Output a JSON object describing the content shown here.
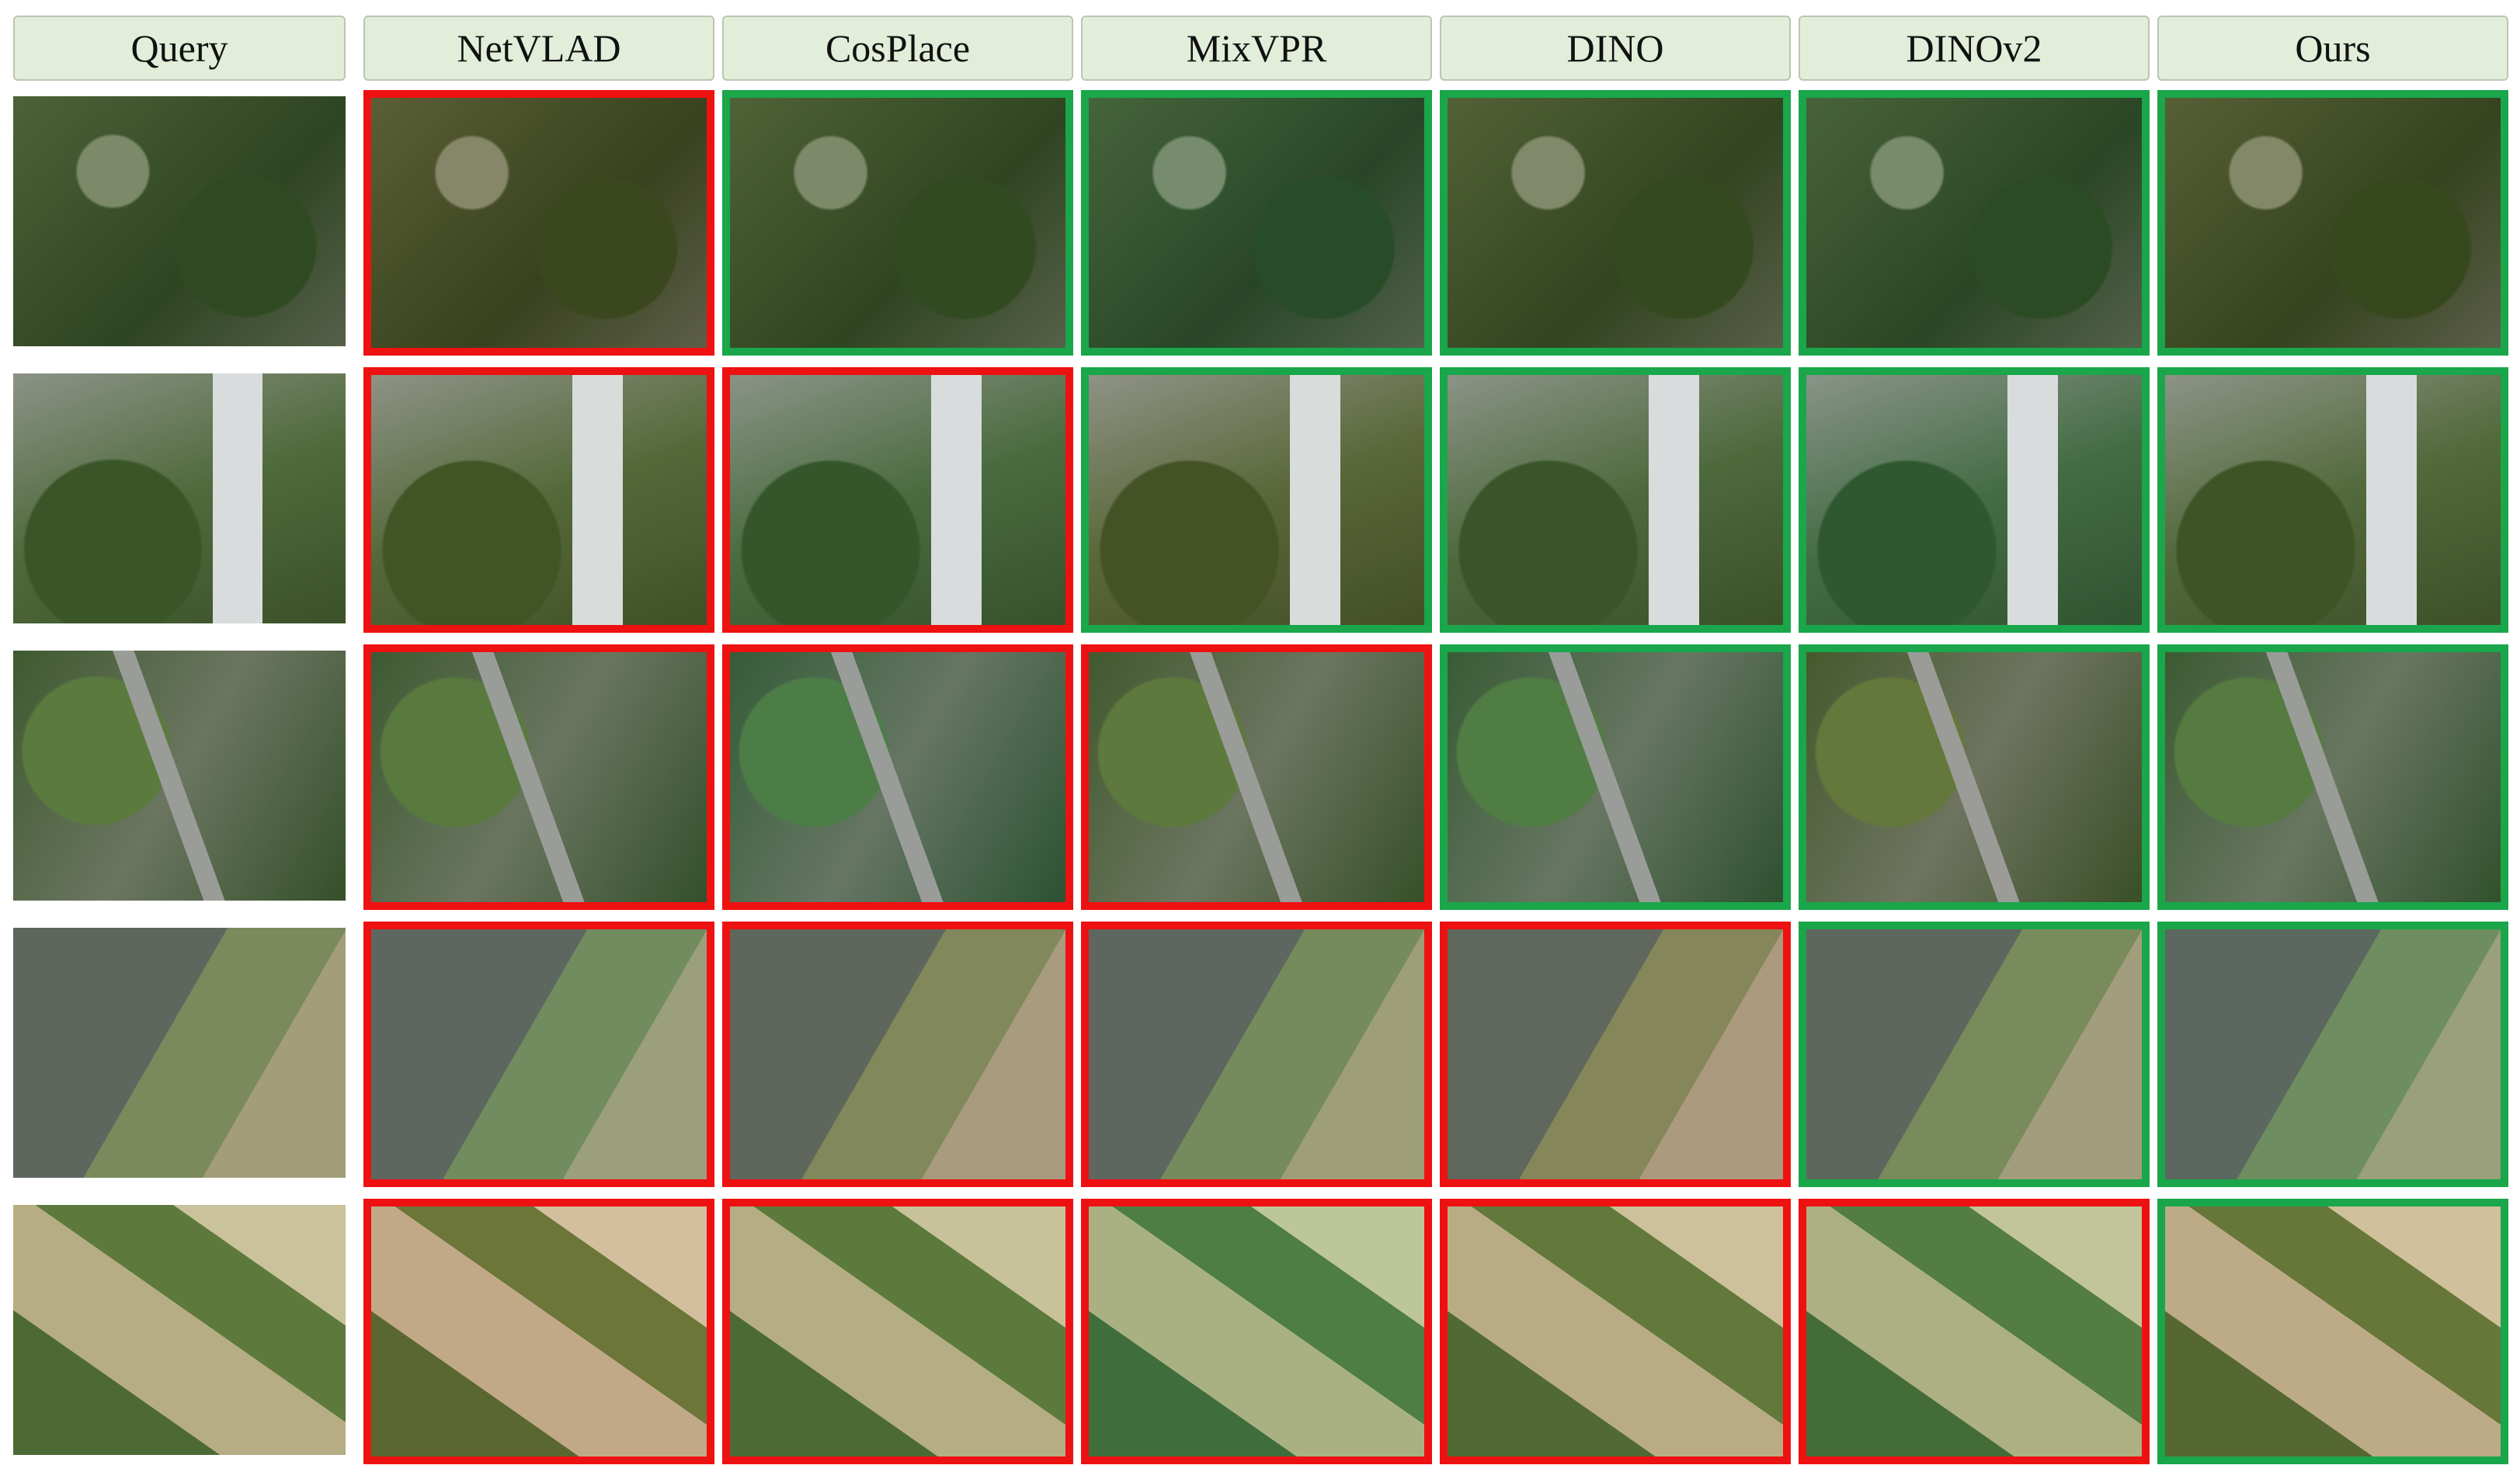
{
  "columns": [
    "Query",
    "NetVLAD",
    "CosPlace",
    "MixVPR",
    "DINO",
    "DINOv2",
    "Ours"
  ],
  "border_colors": [
    [
      "#ee1111",
      "#1aa64a",
      "#1aa64a",
      "#1aa64a",
      "#1aa64a",
      "#1aa64a"
    ],
    [
      "#ee1111",
      "#ee1111",
      "#1aa64a",
      "#1aa64a",
      "#1aa64a",
      "#1aa64a"
    ],
    [
      "#ee1111",
      "#ee1111",
      "#ee1111",
      "#1aa64a",
      "#1aa64a",
      "#1aa64a"
    ],
    [
      "#ee1111",
      "#ee1111",
      "#ee1111",
      "#ee1111",
      "#1aa64a",
      "#1aa64a"
    ],
    [
      "#ee1111",
      "#ee1111",
      "#ee1111",
      "#ee1111",
      "#ee1111",
      "#1aa64a"
    ]
  ]
}
